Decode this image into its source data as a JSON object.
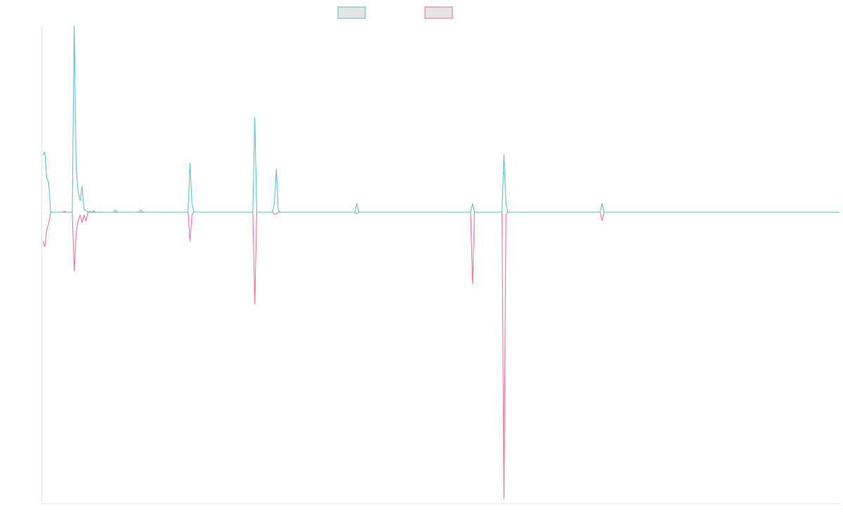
{
  "chart_data": {
    "type": "line",
    "title": "",
    "xlabel": "",
    "ylabel": "",
    "grid": false,
    "legend_position": "top-center",
    "x_count": 407,
    "ylim": [
      -100,
      65
    ],
    "colors": {
      "series_1": "#4bc0c0",
      "series_2": "#ff6384",
      "legend_fill": "#e5e5e5",
      "axis": "#e5e5e5"
    },
    "series": [
      {
        "values": [
          [
            0,
            20
          ],
          [
            1,
            21
          ],
          [
            2,
            12
          ],
          [
            3,
            10
          ],
          [
            4,
            0
          ],
          [
            5,
            0
          ],
          [
            6,
            0
          ],
          [
            7,
            0
          ],
          [
            8,
            0
          ],
          [
            9,
            0
          ],
          [
            10,
            0
          ],
          [
            11,
            0.4
          ],
          [
            12,
            0
          ],
          [
            13,
            0
          ],
          [
            14,
            0
          ],
          [
            15,
            0
          ],
          [
            16,
            65
          ],
          [
            17,
            15
          ],
          [
            18,
            7
          ],
          [
            19,
            4
          ],
          [
            20,
            9
          ],
          [
            21,
            1
          ],
          [
            22,
            0.5
          ],
          [
            23,
            0
          ],
          [
            24,
            0.3
          ],
          [
            25,
            0
          ],
          [
            26,
            0.5
          ],
          [
            27,
            0
          ],
          [
            28,
            0
          ],
          [
            29,
            0
          ],
          [
            30,
            0
          ],
          [
            31,
            0
          ],
          [
            32,
            0
          ],
          [
            33,
            0
          ],
          [
            34,
            0
          ],
          [
            35,
            0
          ],
          [
            36,
            0
          ],
          [
            37,
            0.8
          ],
          [
            38,
            0
          ],
          [
            39,
            0
          ],
          [
            45,
            0
          ],
          [
            49,
            0
          ],
          [
            50,
            0.8
          ],
          [
            51,
            0
          ],
          [
            55,
            0
          ],
          [
            74,
            0
          ],
          [
            75,
            17
          ],
          [
            76,
            3
          ],
          [
            77,
            0
          ],
          [
            106,
            0
          ],
          [
            107,
            0
          ],
          [
            108,
            33
          ],
          [
            109,
            0
          ],
          [
            110,
            0
          ],
          [
            116,
            0
          ],
          [
            117,
            0
          ],
          [
            118,
            3
          ],
          [
            119,
            15
          ],
          [
            120,
            0.5
          ],
          [
            121,
            0
          ],
          [
            159,
            0
          ],
          [
            160,
            3
          ],
          [
            161,
            0
          ],
          [
            217,
            0
          ],
          [
            218,
            0
          ],
          [
            219,
            3
          ],
          [
            220,
            0
          ],
          [
            233,
            0
          ],
          [
            234,
            0
          ],
          [
            235,
            20
          ],
          [
            236,
            3
          ],
          [
            237,
            0
          ],
          [
            283,
            0
          ],
          [
            284,
            0
          ],
          [
            285,
            3
          ],
          [
            286,
            0
          ],
          [
            406,
            0
          ]
        ]
      },
      {
        "values": [
          [
            0,
            -10
          ],
          [
            1,
            -12
          ],
          [
            2,
            -6
          ],
          [
            3,
            -4
          ],
          [
            4,
            0
          ],
          [
            5,
            0
          ],
          [
            6,
            0
          ],
          [
            7,
            0
          ],
          [
            8,
            0
          ],
          [
            9,
            0
          ],
          [
            10,
            0
          ],
          [
            11,
            0
          ],
          [
            12,
            0
          ],
          [
            13,
            0
          ],
          [
            14,
            0
          ],
          [
            15,
            0
          ],
          [
            16,
            -20.5
          ],
          [
            17,
            -7
          ],
          [
            18,
            -3
          ],
          [
            19,
            -1
          ],
          [
            20,
            -3.5
          ],
          [
            21,
            -1
          ],
          [
            22,
            -3
          ],
          [
            23,
            0
          ],
          [
            24,
            0
          ],
          [
            25,
            0
          ],
          [
            26,
            0
          ],
          [
            27,
            0
          ],
          [
            28,
            0
          ],
          [
            55,
            0
          ],
          [
            74,
            0
          ],
          [
            75,
            -10
          ],
          [
            76,
            -1
          ],
          [
            77,
            0
          ],
          [
            106,
            0
          ],
          [
            107,
            0
          ],
          [
            108,
            -32
          ],
          [
            109,
            0
          ],
          [
            110,
            0
          ],
          [
            116,
            0
          ],
          [
            117,
            0
          ],
          [
            118,
            -0.7
          ],
          [
            119,
            -0.5
          ],
          [
            120,
            0
          ],
          [
            159,
            0
          ],
          [
            160,
            -0.5
          ],
          [
            161,
            0
          ],
          [
            217,
            0
          ],
          [
            218,
            0
          ],
          [
            219,
            -25
          ],
          [
            220,
            0
          ],
          [
            233,
            0
          ],
          [
            234,
            0
          ],
          [
            235,
            -100
          ],
          [
            236,
            -1
          ],
          [
            237,
            0
          ],
          [
            283,
            0
          ],
          [
            284,
            0
          ],
          [
            285,
            -3
          ],
          [
            286,
            0
          ],
          [
            406,
            0
          ]
        ]
      }
    ]
  }
}
